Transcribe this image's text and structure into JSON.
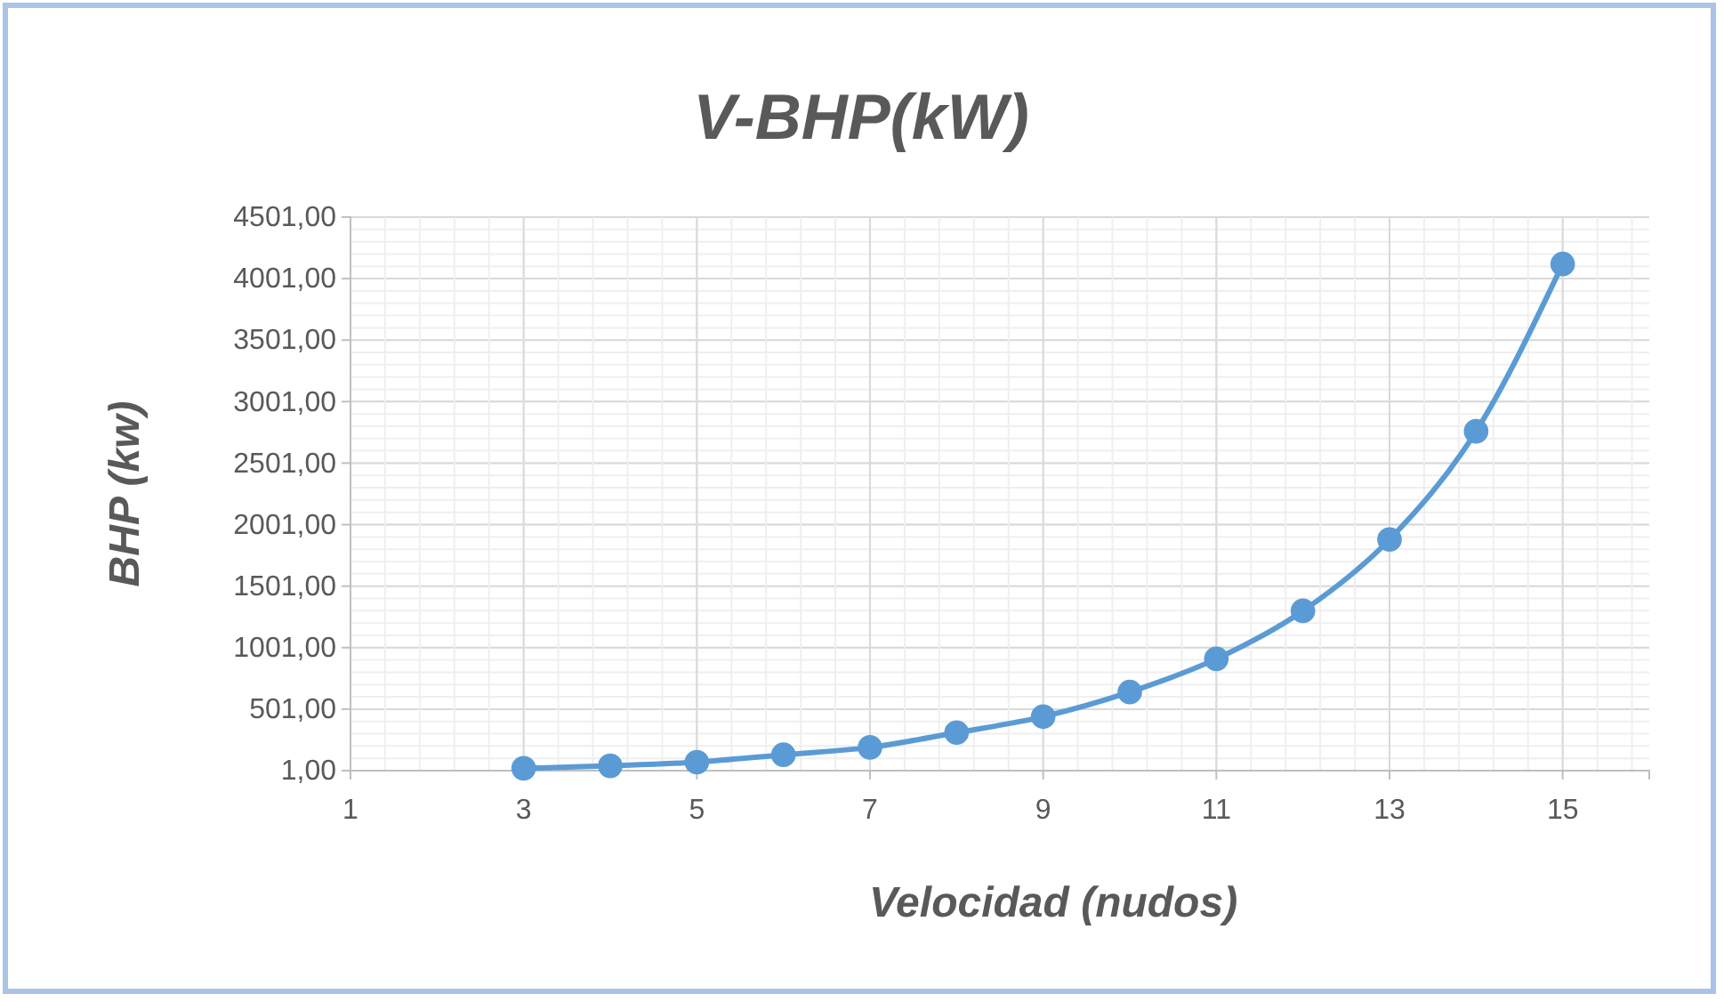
{
  "chart_data": {
    "type": "line",
    "title": "V-BHP(kW)",
    "xlabel": "Velocidad (nudos)",
    "ylabel": "BHP (kw)",
    "x": [
      3,
      4,
      5,
      6,
      7,
      8,
      9,
      10,
      11,
      12,
      13,
      14,
      15
    ],
    "series": [
      {
        "color": "#5b9bd5",
        "values": [
          20,
          40,
          70,
          130,
          190,
          310,
          440,
          640,
          910,
          1300,
          1880,
          2760,
          4120
        ]
      }
    ],
    "xlim": [
      1,
      16
    ],
    "xticks": [
      1,
      3,
      5,
      7,
      9,
      11,
      13,
      15
    ],
    "ylim": [
      1,
      4501
    ],
    "yticks": [
      {
        "value": 1,
        "label": "1,00"
      },
      {
        "value": 501,
        "label": "501,00"
      },
      {
        "value": 1001,
        "label": "1001,00"
      },
      {
        "value": 1501,
        "label": "1501,00"
      },
      {
        "value": 2001,
        "label": "2001,00"
      },
      {
        "value": 2501,
        "label": "2501,00"
      },
      {
        "value": 3001,
        "label": "3001,00"
      },
      {
        "value": 3501,
        "label": "3501,00"
      },
      {
        "value": 4001,
        "label": "4001,00"
      },
      {
        "value": 4501,
        "label": "4501,00"
      }
    ],
    "grid": true,
    "marker": "circle",
    "line_style": "solid"
  }
}
